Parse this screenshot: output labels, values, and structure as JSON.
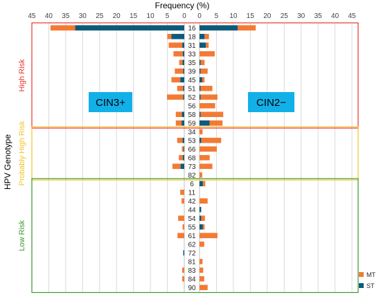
{
  "chart_data": {
    "type": "bar",
    "title": "Frequency (%)",
    "ylabel": "HPV Genotype",
    "x_ticks_left": [
      "45",
      "40",
      "35",
      "30",
      "25",
      "20",
      "15",
      "10",
      "5",
      "0"
    ],
    "x_ticks_right": [
      "0",
      "5",
      "10",
      "15",
      "20",
      "25",
      "30",
      "35",
      "40",
      "45"
    ],
    "xlim": [
      0,
      45
    ],
    "panel_labels": {
      "left": "CIN3+",
      "right": "CIN2−",
      "color": "#12b0e8"
    },
    "legend": {
      "position": "bottom-right",
      "items": [
        {
          "name": "MT",
          "color": "#f47a34"
        },
        {
          "name": "ST",
          "color": "#0e5a7a"
        }
      ]
    },
    "groups": [
      {
        "name": "High Risk",
        "color": "#e8342c"
      },
      {
        "name": "Probably High Risk",
        "color": "#f2c428"
      },
      {
        "name": "Low Risk",
        "color": "#3a9a2a"
      }
    ],
    "categories": [
      "16",
      "18",
      "31",
      "33",
      "35",
      "39",
      "45",
      "51",
      "52",
      "56",
      "58",
      "59",
      "34",
      "53",
      "66",
      "68",
      "73",
      "82",
      "6",
      "11",
      "42",
      "44",
      "54",
      "55",
      "61",
      "62",
      "72",
      "81",
      "83",
      "84",
      "90"
    ],
    "category_group": [
      0,
      0,
      0,
      0,
      0,
      0,
      0,
      0,
      0,
      0,
      0,
      0,
      1,
      1,
      1,
      1,
      1,
      1,
      2,
      2,
      2,
      2,
      2,
      2,
      2,
      2,
      2,
      2,
      2,
      2,
      2
    ],
    "series": [
      {
        "name": "ST",
        "side": "CIN3+",
        "values": [
          32.2,
          3.8,
          0.6,
          0.4,
          0.5,
          0.3,
          1.2,
          0.3,
          0.3,
          0,
          0.7,
          0.8,
          0,
          0.5,
          0.2,
          0.4,
          1.1,
          0,
          0,
          0,
          0,
          0,
          0,
          0,
          0,
          0,
          0.3,
          0,
          0,
          0,
          0
        ]
      },
      {
        "name": "MT",
        "side": "CIN3+",
        "values": [
          7.3,
          1.2,
          4.0,
          2.8,
          1.0,
          2.5,
          2.6,
          1.8,
          4.8,
          0,
          1.8,
          1.7,
          0,
          1.6,
          0.5,
          1.2,
          2.4,
          0,
          0,
          1.2,
          0.8,
          0,
          1.8,
          0.5,
          2.0,
          0,
          0,
          0,
          0.6,
          0.6,
          0
        ]
      },
      {
        "name": "ST",
        "side": "CIN2−",
        "values": [
          11.3,
          1.5,
          1.9,
          0,
          0.3,
          0.3,
          0.8,
          0.3,
          0.3,
          0,
          0.3,
          3.0,
          0,
          0.5,
          0,
          0,
          0,
          0,
          1.0,
          0,
          0,
          0.5,
          0.5,
          1.0,
          0,
          0,
          0,
          0,
          0,
          0,
          0
        ]
      },
      {
        "name": "MT",
        "side": "CIN2−",
        "values": [
          5.3,
          1.3,
          0.8,
          4.5,
          1.2,
          2.1,
          0.7,
          3.5,
          5.0,
          4.6,
          6.7,
          3.8,
          0.9,
          5.9,
          5.1,
          3.0,
          3.8,
          0.8,
          0.7,
          0,
          2.4,
          0,
          1.1,
          0.5,
          5.3,
          1.4,
          0,
          0.9,
          1.1,
          1.4,
          2.4
        ]
      }
    ]
  }
}
